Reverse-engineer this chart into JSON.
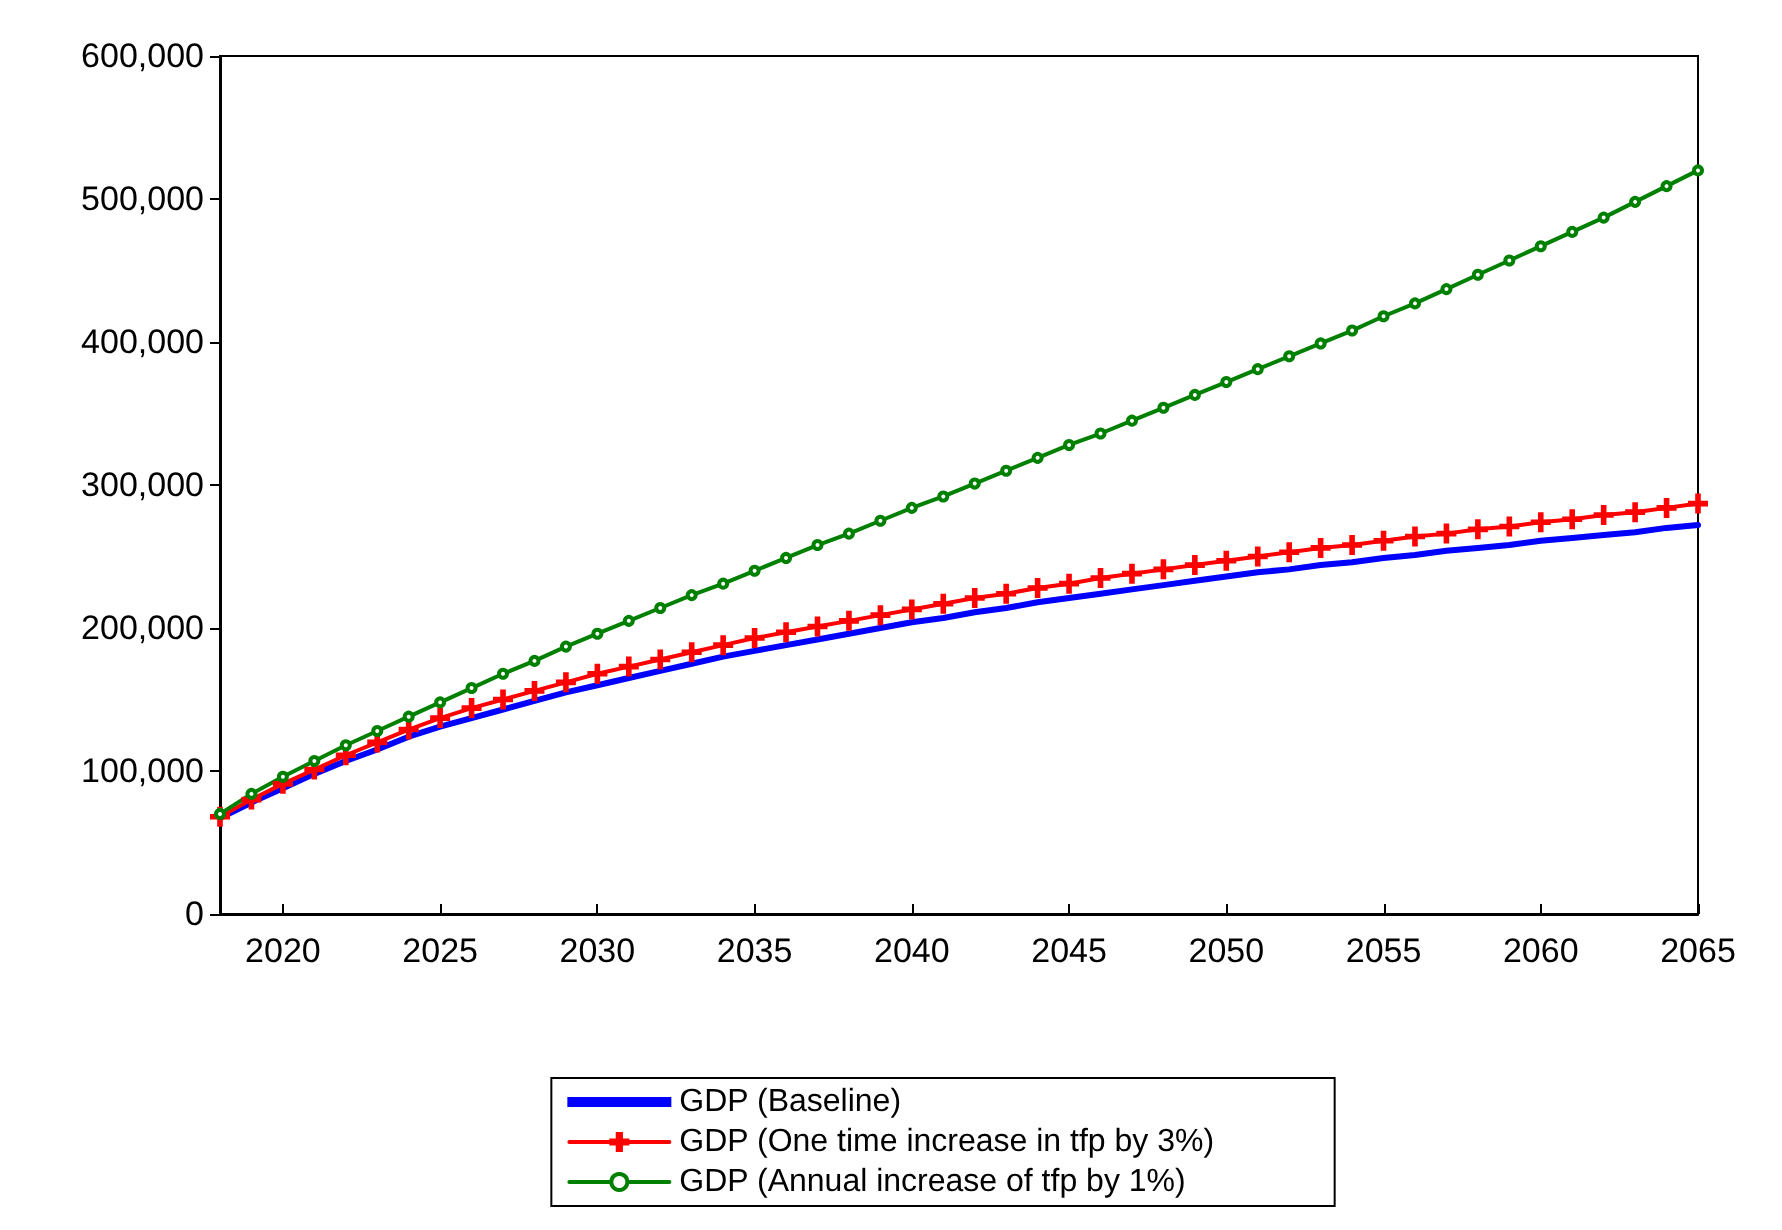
{
  "chart_data": {
    "type": "line",
    "x": [
      2018,
      2019,
      2020,
      2021,
      2022,
      2023,
      2024,
      2025,
      2026,
      2027,
      2028,
      2029,
      2030,
      2031,
      2032,
      2033,
      2034,
      2035,
      2036,
      2037,
      2038,
      2039,
      2040,
      2041,
      2042,
      2043,
      2044,
      2045,
      2046,
      2047,
      2048,
      2049,
      2050,
      2051,
      2052,
      2053,
      2054,
      2055,
      2056,
      2057,
      2058,
      2059,
      2060,
      2061,
      2062,
      2063,
      2064,
      2065
    ],
    "series": [
      {
        "name": "GDP (Baseline)",
        "color": "#0000ff",
        "marker": "none",
        "values": [
          67000,
          78000,
          88000,
          98000,
          107000,
          115000,
          124000,
          131000,
          137000,
          143000,
          149000,
          155000,
          160000,
          165000,
          170000,
          175000,
          180000,
          184000,
          188000,
          192000,
          196000,
          200000,
          204000,
          207000,
          211000,
          214000,
          218000,
          221000,
          224000,
          227000,
          230000,
          233000,
          236000,
          239000,
          241000,
          244000,
          246000,
          249000,
          251000,
          254000,
          256000,
          258000,
          261000,
          263000,
          265000,
          267000,
          270000,
          272000
        ]
      },
      {
        "name": "GDP (One time increase in tfp by 3%)",
        "color": "#ff0000",
        "marker": "cross",
        "values": [
          68000,
          80000,
          91000,
          101000,
          111000,
          120000,
          129000,
          137000,
          144000,
          150000,
          156000,
          162000,
          168000,
          173000,
          178000,
          183000,
          188000,
          193000,
          197000,
          201000,
          205000,
          209000,
          213000,
          217000,
          221000,
          224000,
          228000,
          231000,
          235000,
          238000,
          241000,
          244000,
          247000,
          250000,
          253000,
          256000,
          258000,
          261000,
          264000,
          266000,
          269000,
          271000,
          274000,
          276000,
          279000,
          281000,
          284000,
          287000
        ]
      },
      {
        "name": "GDP (Annual increase of tfp by 1%)",
        "color": "#008000",
        "marker": "circle",
        "values": [
          70000,
          84000,
          96000,
          107000,
          118000,
          128000,
          138000,
          148000,
          158000,
          168000,
          177000,
          187000,
          196000,
          205000,
          214000,
          223000,
          231000,
          240000,
          249000,
          258000,
          266000,
          275000,
          284000,
          292000,
          301000,
          310000,
          319000,
          328000,
          336000,
          345000,
          354000,
          363000,
          372000,
          381000,
          390000,
          399000,
          408000,
          418000,
          427000,
          437000,
          447000,
          457000,
          467000,
          477000,
          487000,
          498000,
          509000,
          520000
        ]
      }
    ],
    "xlim": [
      2018,
      2065
    ],
    "xticks": [
      2020,
      2025,
      2030,
      2035,
      2040,
      2045,
      2050,
      2055,
      2060,
      2065
    ],
    "ylim": [
      0,
      600000
    ],
    "yticks": [
      0,
      {
        "value": 100000,
        "label": "100,000"
      },
      {
        "value": 200000,
        "label": "200,000"
      },
      {
        "value": 300000,
        "label": "300,000"
      },
      {
        "value": 400000,
        "label": "400,000"
      },
      {
        "value": 500000,
        "label": "500,000"
      },
      {
        "value": 600000,
        "label": "600,000"
      }
    ],
    "grid": false,
    "legend": "bottom"
  }
}
